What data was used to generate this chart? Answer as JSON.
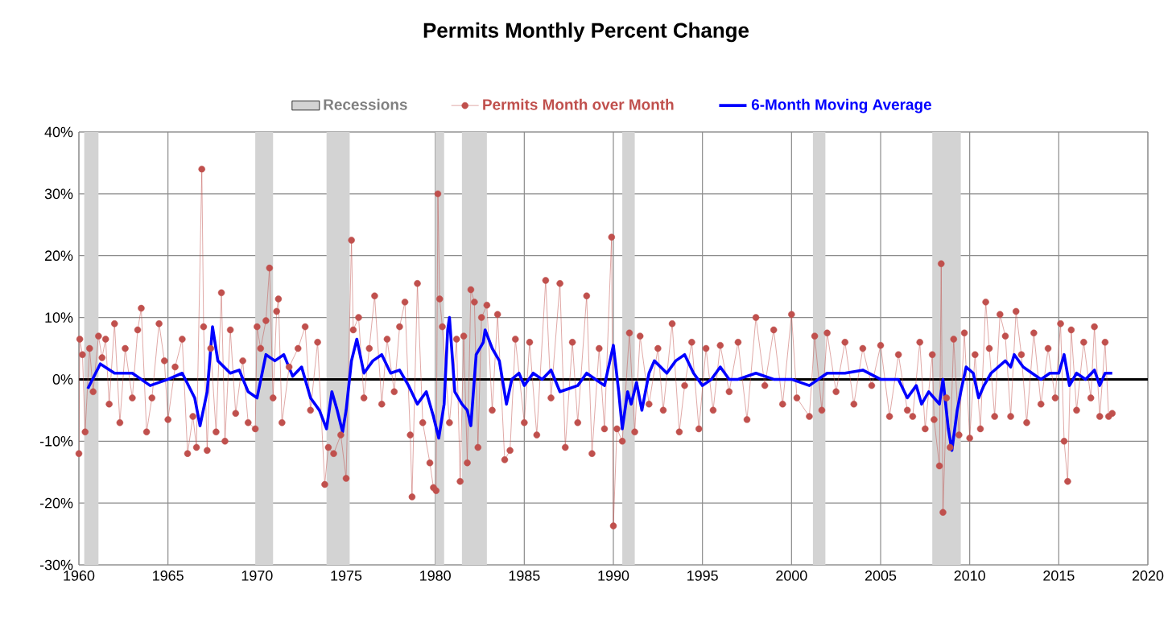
{
  "chart_data": {
    "type": "line",
    "title": "Permits Monthly Percent Change",
    "xlim": [
      1960,
      2020
    ],
    "xticks": [
      1960,
      1965,
      1970,
      1975,
      1980,
      1985,
      1990,
      1995,
      2000,
      2005,
      2010,
      2015,
      2020
    ],
    "ylim": [
      -30,
      40
    ],
    "yticks": [
      {
        "value": -30,
        "label": "-30%"
      },
      {
        "value": -20,
        "label": "-20%"
      },
      {
        "value": -10,
        "label": "-10%"
      },
      {
        "value": 0,
        "label": "0%"
      },
      {
        "value": 10,
        "label": "10%"
      },
      {
        "value": 20,
        "label": "20%"
      },
      {
        "value": 30,
        "label": "30%"
      },
      {
        "value": 40,
        "label": "40%"
      }
    ],
    "grid": true,
    "legend": "top",
    "bands": [
      {
        "axis": "x",
        "from": 1960.3,
        "to": 1961.1,
        "label": "Recessions",
        "color": "#d3d3d3"
      },
      {
        "axis": "x",
        "from": 1969.9,
        "to": 1970.9,
        "color": "#d3d3d3"
      },
      {
        "axis": "x",
        "from": 1973.9,
        "to": 1975.2,
        "color": "#d3d3d3"
      },
      {
        "axis": "x",
        "from": 1980.0,
        "to": 1980.5,
        "color": "#d3d3d3"
      },
      {
        "axis": "x",
        "from": 1981.5,
        "to": 1982.9,
        "color": "#d3d3d3"
      },
      {
        "axis": "x",
        "from": 1990.5,
        "to": 1991.2,
        "color": "#d3d3d3"
      },
      {
        "axis": "x",
        "from": 2001.2,
        "to": 2001.9,
        "color": "#d3d3d3"
      },
      {
        "axis": "x",
        "from": 2007.9,
        "to": 2009.5,
        "color": "#d3d3d3"
      }
    ],
    "ref_lines": [
      {
        "axis": "y",
        "value": 0,
        "color": "#000000"
      }
    ],
    "series": [
      {
        "name": "Permits Month over Month",
        "color": "#c0504d",
        "marker": "circle",
        "line_style": "solid",
        "x": [
          1960.0,
          1960.05,
          1960.2,
          1960.35,
          1960.6,
          1960.8,
          1961.1,
          1961.3,
          1961.5,
          1961.7,
          1962.0,
          1962.3,
          1962.6,
          1963.0,
          1963.3,
          1963.5,
          1963.8,
          1964.1,
          1964.5,
          1964.8,
          1965.0,
          1965.4,
          1965.8,
          1966.1,
          1966.4,
          1966.6,
          1966.9,
          1967.0,
          1967.2,
          1967.4,
          1967.7,
          1968.0,
          1968.2,
          1968.5,
          1968.8,
          1969.2,
          1969.5,
          1969.9,
          1970.0,
          1970.2,
          1970.5,
          1970.7,
          1970.9,
          1971.1,
          1971.2,
          1971.4,
          1971.8,
          1972.3,
          1972.7,
          1973.0,
          1973.4,
          1973.8,
          1974.0,
          1974.3,
          1974.7,
          1975.0,
          1975.3,
          1975.4,
          1975.7,
          1976.0,
          1976.3,
          1976.6,
          1977.0,
          1977.3,
          1977.7,
          1978.0,
          1978.3,
          1978.6,
          1978.7,
          1979.0,
          1979.3,
          1979.7,
          1979.9,
          1980.05,
          1980.15,
          1980.25,
          1980.4,
          1980.8,
          1981.2,
          1981.4,
          1981.6,
          1981.8,
          1982.0,
          1982.2,
          1982.4,
          1982.6,
          1982.9,
          1983.2,
          1983.5,
          1983.9,
          1984.2,
          1984.5,
          1985.0,
          1985.3,
          1985.7,
          1986.2,
          1986.5,
          1987.0,
          1987.3,
          1987.7,
          1988.0,
          1988.5,
          1988.8,
          1989.2,
          1989.5,
          1989.9,
          1990.0,
          1990.2,
          1990.5,
          1990.9,
          1991.2,
          1991.5,
          1992.0,
          1992.5,
          1992.8,
          1993.3,
          1993.7,
          1994.0,
          1994.4,
          1994.8,
          1995.2,
          1995.6,
          1996.0,
          1996.5,
          1997.0,
          1997.5,
          1998.0,
          1998.5,
          1999.0,
          1999.5,
          2000.0,
          2000.3,
          2001.0,
          2001.3,
          2001.7,
          2002.0,
          2002.5,
          2003.0,
          2003.5,
          2004.0,
          2004.5,
          2005.0,
          2005.5,
          2006.0,
          2006.5,
          2006.8,
          2007.2,
          2007.5,
          2007.9,
          2008.0,
          2008.3,
          2008.4,
          2008.5,
          2008.7,
          2008.9,
          2009.1,
          2009.4,
          2009.7,
          2010.0,
          2010.3,
          2010.6,
          2010.9,
          2011.1,
          2011.4,
          2011.7,
          2012.0,
          2012.3,
          2012.6,
          2012.9,
          2013.2,
          2013.6,
          2014.0,
          2014.4,
          2014.8,
          2015.1,
          2015.3,
          2015.5,
          2015.7,
          2016.0,
          2016.4,
          2016.8,
          2017.0,
          2017.3,
          2017.6,
          2017.8,
          2018.0
        ],
        "values": [
          -12,
          6.5,
          4,
          -8.5,
          5,
          -2,
          7,
          3.5,
          6.5,
          -4,
          9,
          -7,
          5,
          -3,
          8,
          11.5,
          -8.5,
          -3,
          9,
          3,
          -6.5,
          2,
          6.5,
          -12,
          -6,
          -11,
          34,
          8.5,
          -11.5,
          5,
          -8.5,
          14,
          -10,
          8,
          -5.5,
          3,
          -7,
          -8,
          8.5,
          5,
          9.5,
          18,
          -3,
          11,
          13,
          -7,
          2,
          5,
          8.5,
          -5,
          6,
          -17,
          -11,
          -12,
          -9,
          -16,
          22.5,
          8,
          10,
          -3,
          5,
          13.5,
          -4,
          6.5,
          -2,
          8.5,
          12.5,
          -9,
          -19,
          15.5,
          -7,
          -13.5,
          -17.5,
          -18,
          30,
          13,
          8.5,
          -7,
          6.5,
          -16.5,
          7,
          -13.5,
          14.5,
          12.5,
          -11,
          10,
          12,
          -5,
          10.5,
          -13,
          -11.5,
          6.5,
          -7,
          6,
          -9,
          16,
          -3,
          15.5,
          -11,
          6,
          -7,
          13.5,
          -12,
          5,
          -8,
          23,
          -23.7,
          -8,
          -10,
          7.5,
          -8.5,
          7,
          -4,
          5,
          -5,
          9,
          -8.5,
          -1,
          6,
          -8,
          5,
          -5,
          5.5,
          -2,
          6,
          -6.5,
          10,
          -1,
          8,
          -4,
          10.5,
          -3,
          -6,
          7,
          -5,
          7.5,
          -2,
          6,
          -4,
          5,
          -1,
          5.5,
          -6,
          4,
          -5,
          -6,
          6,
          -8,
          4,
          -6.5,
          -14,
          18.7,
          -21.5,
          -3,
          -11,
          6.5,
          -9,
          7.5,
          -9.5,
          4,
          -8,
          12.5,
          5,
          -6,
          10.5,
          7,
          -6,
          11,
          4,
          -7,
          7.5,
          -4,
          5,
          -3,
          9,
          -10,
          -16.5,
          8,
          -5,
          6,
          -3,
          8.5,
          -6,
          6,
          -6,
          -5.5
        ]
      },
      {
        "name": "6-Month Moving Average",
        "color": "#0000ff",
        "marker": "none",
        "line_style": "solid",
        "x": [
          1960.5,
          1961.2,
          1962,
          1963,
          1964,
          1965,
          1965.8,
          1966.5,
          1966.8,
          1967.2,
          1967.5,
          1967.8,
          1968.5,
          1969,
          1969.5,
          1970,
          1970.5,
          1971,
          1971.5,
          1972,
          1972.5,
          1973,
          1973.5,
          1973.9,
          1974.2,
          1974.5,
          1974.8,
          1975,
          1975.3,
          1975.6,
          1976,
          1976.5,
          1977,
          1977.5,
          1978,
          1978.5,
          1979,
          1979.5,
          1979.9,
          1980.2,
          1980.5,
          1980.7,
          1980.8,
          1981.1,
          1981.5,
          1981.8,
          1982.0,
          1982.3,
          1982.7,
          1982.8,
          1983.2,
          1983.6,
          1984.0,
          1984.3,
          1984.7,
          1985,
          1985.5,
          1986,
          1986.5,
          1987,
          1987.5,
          1988,
          1988.5,
          1989,
          1989.5,
          1990.0,
          1990.3,
          1990.5,
          1990.8,
          1991,
          1991.3,
          1991.6,
          1992,
          1992.3,
          1993,
          1993.5,
          1994,
          1994.5,
          1995,
          1995.5,
          1996,
          1996.5,
          1997,
          1998,
          1999,
          2000,
          2001,
          2002,
          2003,
          2004,
          2005,
          2006,
          2006.5,
          2007,
          2007.3,
          2007.7,
          2008,
          2008.3,
          2008.5,
          2008.8,
          2009.0,
          2009.3,
          2009.5,
          2009.8,
          2010.2,
          2010.5,
          2010.8,
          2011.2,
          2011.6,
          2012,
          2012.3,
          2012.5,
          2013,
          2013.5,
          2014,
          2014.5,
          2015,
          2015.3,
          2015.6,
          2016,
          2016.5,
          2017,
          2017.3,
          2017.6,
          2018
        ],
        "values": [
          -1.5,
          2.5,
          1,
          1,
          -1,
          0,
          1,
          -3,
          -7.5,
          -2,
          8.5,
          3,
          1,
          1.5,
          -2,
          -3,
          4,
          3,
          4,
          0.5,
          2,
          -3,
          -5,
          -8,
          -2,
          -5,
          -8.5,
          -5,
          3,
          6.5,
          1,
          3,
          4,
          1,
          1.5,
          -1,
          -4,
          -2,
          -6,
          -9.5,
          -4,
          8,
          10,
          -2,
          -4,
          -5,
          -7.5,
          4,
          6,
          8,
          5,
          3,
          -4,
          0,
          1,
          -1,
          1,
          0,
          1.5,
          -2,
          -1.5,
          -1,
          1,
          0,
          -1,
          5.5,
          -2,
          -8,
          -2,
          -4,
          -0.5,
          -5,
          1,
          3,
          1,
          3,
          4,
          1,
          -1,
          0,
          2,
          0,
          0,
          1,
          0,
          0,
          -1,
          1,
          1,
          1.5,
          0,
          0,
          -3,
          -1,
          -4,
          -2,
          -3,
          -4,
          0,
          -8,
          -11.5,
          -5,
          -2,
          2,
          1,
          -3,
          -1,
          1,
          2,
          3,
          2,
          4,
          2,
          1,
          0,
          1,
          1,
          4,
          -1,
          1,
          0,
          1.5,
          -1,
          1,
          1
        ]
      }
    ]
  }
}
